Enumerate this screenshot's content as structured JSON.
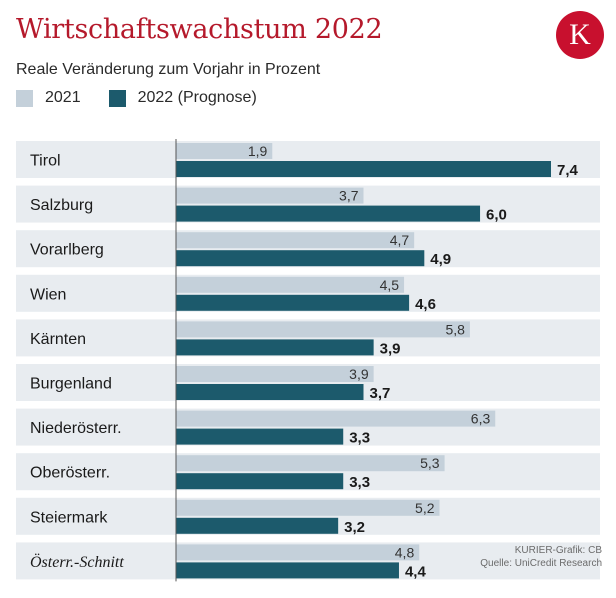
{
  "header": {
    "title": "Wirtschaftswachstum 2022",
    "subtitle": "Reale Veränderung zum Vorjahr in Prozent",
    "logo_letter": "K"
  },
  "credit": {
    "line1": "KURIER-Grafik: CB",
    "line2": "Quelle: UniCredit Research"
  },
  "colors": {
    "title": "#b5192b",
    "logo": "#c8102e",
    "bar_2021": "#c4d0da",
    "bar_2022": "#1c5a6c",
    "row_band": "#e8ecf0"
  },
  "chart_data": {
    "type": "bar",
    "orientation": "horizontal",
    "title": "Wirtschaftswachstum 2022",
    "subtitle": "Reale Veränderung zum Vorjahr in Prozent",
    "categories": [
      "Tirol",
      "Salzburg",
      "Vorarlberg",
      "Wien",
      "Kärnten",
      "Burgenland",
      "Niederösterr.",
      "Oberösterr.",
      "Steiermark",
      "Österr.-Schnitt"
    ],
    "series": [
      {
        "name": "2021",
        "values": [
          1.9,
          3.7,
          4.7,
          4.5,
          5.8,
          3.9,
          6.3,
          5.3,
          5.2,
          4.8
        ],
        "labels": [
          "1,9",
          "3,7",
          "4,7",
          "4,5",
          "5,8",
          "3,9",
          "6,3",
          "5,3",
          "5,2",
          "4,8"
        ]
      },
      {
        "name": "2022 (Prognose)",
        "values": [
          7.4,
          6.0,
          4.9,
          4.6,
          3.9,
          3.7,
          3.3,
          3.3,
          3.2,
          4.4
        ],
        "labels": [
          "7,4",
          "6,0",
          "4,9",
          "4,6",
          "3,9",
          "3,7",
          "3,3",
          "3,3",
          "3,2",
          "4,4"
        ]
      }
    ],
    "xlim": [
      0,
      7.4
    ],
    "grid": false,
    "legend_position": "top-left"
  }
}
